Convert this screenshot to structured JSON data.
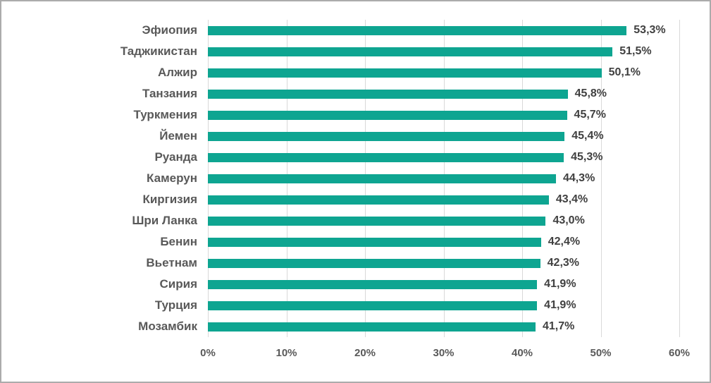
{
  "chart_data": {
    "type": "bar",
    "orientation": "horizontal",
    "categories": [
      "Эфиопия",
      "Таджикистан",
      "Алжир",
      "Танзания",
      "Туркмения",
      "Йемен",
      "Руанда",
      "Камерун",
      "Киргизия",
      "Шри Ланка",
      "Бенин",
      "Вьетнам",
      "Сирия",
      "Турция",
      "Мозамбик"
    ],
    "values": [
      53.3,
      51.5,
      50.1,
      45.8,
      45.7,
      45.4,
      45.3,
      44.3,
      43.4,
      43.0,
      42.4,
      42.3,
      41.9,
      41.9,
      41.7
    ],
    "value_labels": [
      "53,3%",
      "51,5%",
      "50,1%",
      "45,8%",
      "45,7%",
      "45,4%",
      "45,3%",
      "44,3%",
      "43,4%",
      "43,0%",
      "42,4%",
      "42,3%",
      "41,9%",
      "41,9%",
      "41,7%"
    ],
    "x_ticks": [
      "0%",
      "10%",
      "20%",
      "30%",
      "40%",
      "50%",
      "60%"
    ],
    "xlim": [
      0,
      60
    ],
    "title": "",
    "xlabel": "",
    "ylabel": "",
    "grid": true,
    "legend": false,
    "bar_color": "#0ea591",
    "gridline_color": "#d9d9d9",
    "category_label_color": "#595959",
    "value_label_color": "#404040",
    "tick_label_color": "#595959",
    "frame_border_color": "#ababab",
    "background_color": "#ffffff"
  }
}
